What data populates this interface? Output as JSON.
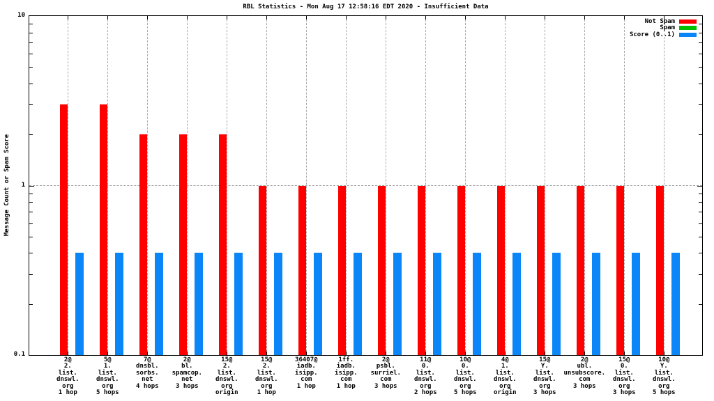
{
  "chart_data": {
    "type": "bar",
    "title": "RBL Statistics - Mon Aug 17 12:58:16 EDT 2020 - Insufficient Data",
    "ylabel": "Message Count or Spam Score",
    "xlabel": "",
    "yscale": "log",
    "ylim": [
      0.1,
      10
    ],
    "grid": true,
    "grid_y_at": [
      1
    ],
    "legend_position": "top-right",
    "yticks": [
      {
        "value": 10,
        "label": "10"
      },
      {
        "value": 1,
        "label": "1"
      },
      {
        "value": 0.1,
        "label": "0.1"
      }
    ],
    "categories": [
      "2@\n2.\nlist.\ndnswl.\norg\n1 hop",
      "5@\n1.\nlist.\ndnswl.\norg\n5 hops",
      "7@\ndnsbl.\nsorbs.\nnet\n4 hops",
      "2@\nbl.\nspamcop.\nnet\n3 hops",
      "15@\n2.\nlist.\ndnswl.\norg\norigin",
      "15@\n2.\nlist.\ndnswl.\norg\n1 hop",
      "36407@\niadb.\nisipp.\ncom\n1 hop",
      "1ff.\niadb.\nisipp.\ncom\n1 hop",
      "2@\npsbl.\nsurriel.\ncom\n3 hops",
      "11@\n0.\nlist.\ndnswl.\norg\n2 hops",
      "10@\n0.\nlist.\ndnswl.\norg\n5 hops",
      "4@\n1.\nlist.\ndnswl.\norg\norigin",
      "15@\nY.\nlist.\ndnswl.\norg\n3 hops",
      "2@\nubl.\nunsubscore.\ncom\n3 hops",
      "15@\n0.\nlist.\ndnswl.\norg\n3 hops",
      "10@\nY.\nlist.\ndnswl.\norg\n5 hops"
    ],
    "series": [
      {
        "name": "Not Spam",
        "color": "#ff0000",
        "values": [
          3,
          3,
          2,
          2,
          2,
          1,
          1,
          1,
          1,
          1,
          1,
          1,
          1,
          1,
          1,
          1
        ]
      },
      {
        "name": "Spam",
        "color": "#00c000",
        "values": [
          null,
          null,
          null,
          null,
          null,
          null,
          null,
          null,
          null,
          null,
          null,
          null,
          null,
          null,
          null,
          null
        ]
      },
      {
        "name": "Score (0..1)",
        "color": "#0a86f8",
        "values": [
          0.4,
          0.4,
          0.4,
          0.4,
          0.4,
          0.4,
          0.4,
          0.4,
          0.4,
          0.4,
          0.4,
          0.4,
          0.4,
          0.4,
          0.4,
          0.4
        ]
      }
    ]
  }
}
